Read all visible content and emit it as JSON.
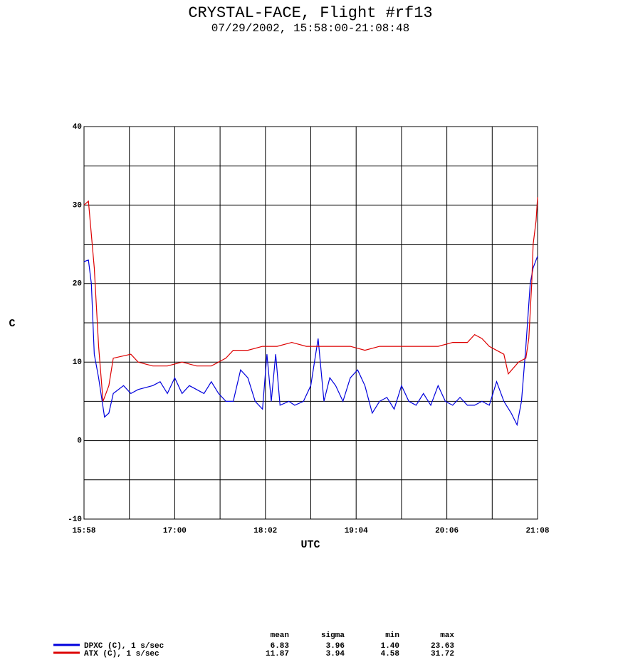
{
  "chart_data": {
    "type": "line",
    "title": "CRYSTAL-FACE, Flight #rf13",
    "subtitle": "07/29/2002, 15:58:00-21:08:48",
    "xlabel": "UTC",
    "ylabel": "C",
    "xlim": [
      "15:58",
      "21:08"
    ],
    "xticks": [
      "15:58",
      "17:00",
      "18:02",
      "19:04",
      "20:06",
      "21:08"
    ],
    "ylim": [
      -10,
      40
    ],
    "yticks": [
      -10,
      0,
      10,
      20,
      30,
      40
    ],
    "grid": true,
    "series": [
      {
        "name": "DPXC (C), 1 s/sec",
        "color": "#0000dd",
        "x": [
          "15:58",
          "16:01",
          "16:03",
          "16:05",
          "16:08",
          "16:12",
          "16:15",
          "16:18",
          "16:25",
          "16:30",
          "16:35",
          "16:45",
          "16:50",
          "16:55",
          "17:00",
          "17:05",
          "17:10",
          "17:20",
          "17:25",
          "17:30",
          "17:35",
          "17:40",
          "17:45",
          "17:50",
          "17:55",
          "18:00",
          "18:03",
          "18:06",
          "18:09",
          "18:12",
          "18:18",
          "18:22",
          "18:28",
          "18:33",
          "18:38",
          "18:42",
          "18:46",
          "18:50",
          "18:55",
          "19:00",
          "19:05",
          "19:10",
          "19:15",
          "19:20",
          "19:25",
          "19:30",
          "19:35",
          "19:40",
          "19:45",
          "19:50",
          "19:55",
          "20:00",
          "20:05",
          "20:10",
          "20:15",
          "20:20",
          "20:25",
          "20:30",
          "20:35",
          "20:40",
          "20:45",
          "20:50",
          "20:54",
          "20:57",
          "21:00",
          "21:03",
          "21:05",
          "21:08"
        ],
        "values": [
          22.8,
          23,
          20,
          11,
          8,
          3,
          3.5,
          6,
          7,
          6,
          6.5,
          7,
          7.5,
          6,
          8,
          6,
          7,
          6,
          7.5,
          6,
          5,
          5,
          9,
          8,
          5,
          4,
          11,
          5,
          11,
          4.5,
          5,
          4.5,
          5,
          7,
          13,
          5,
          8,
          7,
          5,
          8,
          9,
          7,
          3.5,
          5,
          5.5,
          4,
          7,
          5,
          4.5,
          6,
          4.5,
          7,
          5,
          4.5,
          5.5,
          4.5,
          4.5,
          5,
          4.5,
          7.5,
          5,
          3.5,
          2,
          5,
          12,
          20,
          22,
          23.5
        ]
      },
      {
        "name": "ATX (C), 1 s/sec",
        "color": "#dd0000",
        "x": [
          "15:58",
          "16:01",
          "16:05",
          "16:08",
          "16:11",
          "16:15",
          "16:18",
          "16:30",
          "16:35",
          "16:45",
          "16:55",
          "17:05",
          "17:15",
          "17:25",
          "17:35",
          "17:40",
          "17:50",
          "18:00",
          "18:10",
          "18:20",
          "18:30",
          "18:40",
          "18:50",
          "19:00",
          "19:10",
          "19:20",
          "19:30",
          "19:40",
          "19:50",
          "20:00",
          "20:10",
          "20:20",
          "20:25",
          "20:30",
          "20:35",
          "20:45",
          "20:48",
          "20:55",
          "21:00",
          "21:02",
          "21:04",
          "21:05",
          "21:07",
          "21:08"
        ],
        "values": [
          30,
          30.5,
          22,
          12,
          5,
          7,
          10.5,
          11,
          10,
          9.5,
          9.5,
          10,
          9.5,
          9.5,
          10.5,
          11.5,
          11.5,
          12,
          12,
          12.5,
          12,
          12,
          12,
          12,
          11.5,
          12,
          12,
          12,
          12,
          12,
          12.5,
          12.5,
          13.5,
          13,
          12,
          11,
          8.5,
          10,
          10.5,
          13,
          20,
          25,
          28,
          31
        ]
      }
    ],
    "stats": {
      "columns": [
        "mean",
        "sigma",
        "min",
        "max"
      ],
      "rows": [
        [
          "6.83",
          "3.96",
          "1.40",
          "23.63"
        ],
        [
          "11.87",
          "3.94",
          "4.58",
          "31.72"
        ]
      ]
    }
  }
}
